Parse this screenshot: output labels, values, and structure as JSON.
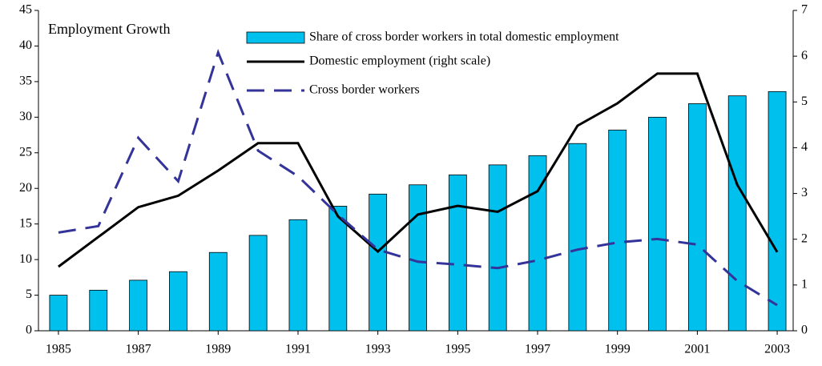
{
  "chart_data": {
    "type": "bar",
    "title": "Employment Growth",
    "x": [
      1985,
      1986,
      1987,
      1988,
      1989,
      1990,
      1991,
      1992,
      1993,
      1994,
      1995,
      1996,
      1997,
      1998,
      1999,
      2000,
      2001,
      2002,
      2003
    ],
    "xlim": [
      1984.5,
      2003.4
    ],
    "xticks": [
      1985,
      1987,
      1989,
      1991,
      1993,
      1995,
      1997,
      1999,
      2001,
      2003
    ],
    "ylim": [
      0,
      45
    ],
    "yticks": [
      0,
      5,
      10,
      15,
      20,
      25,
      30,
      35,
      40,
      45
    ],
    "y2lim": [
      0,
      7
    ],
    "y2ticks": [
      0,
      1,
      2,
      3,
      4,
      5,
      6,
      7
    ],
    "series": [
      {
        "name": "Share of cross border workers in total domestic employment",
        "type": "bar",
        "color": "#00c0ee",
        "values": [
          5.0,
          5.7,
          7.1,
          8.3,
          11.0,
          13.4,
          15.6,
          17.5,
          19.2,
          20.5,
          21.9,
          23.3,
          24.6,
          26.3,
          28.2,
          30.0,
          31.9,
          33.0,
          33.6
        ]
      },
      {
        "name": "Domestic employment (right scale)",
        "type": "line",
        "color": "#000000",
        "axis": "y2",
        "values": [
          1.4,
          2.05,
          2.7,
          2.95,
          3.5,
          4.1,
          4.1,
          2.5,
          1.73,
          2.54,
          2.73,
          2.6,
          3.05,
          4.48,
          4.97,
          5.62,
          5.62,
          3.19,
          1.72
        ]
      },
      {
        "name": "Cross border workers",
        "type": "line",
        "color": "#333399",
        "dashed": true,
        "values": [
          13.8,
          14.7,
          27.1,
          21.0,
          39.1,
          25.3,
          21.7,
          16.3,
          11.4,
          9.7,
          9.3,
          8.8,
          9.9,
          11.4,
          12.4,
          12.9,
          12.1,
          7.0,
          3.6
        ]
      }
    ]
  }
}
